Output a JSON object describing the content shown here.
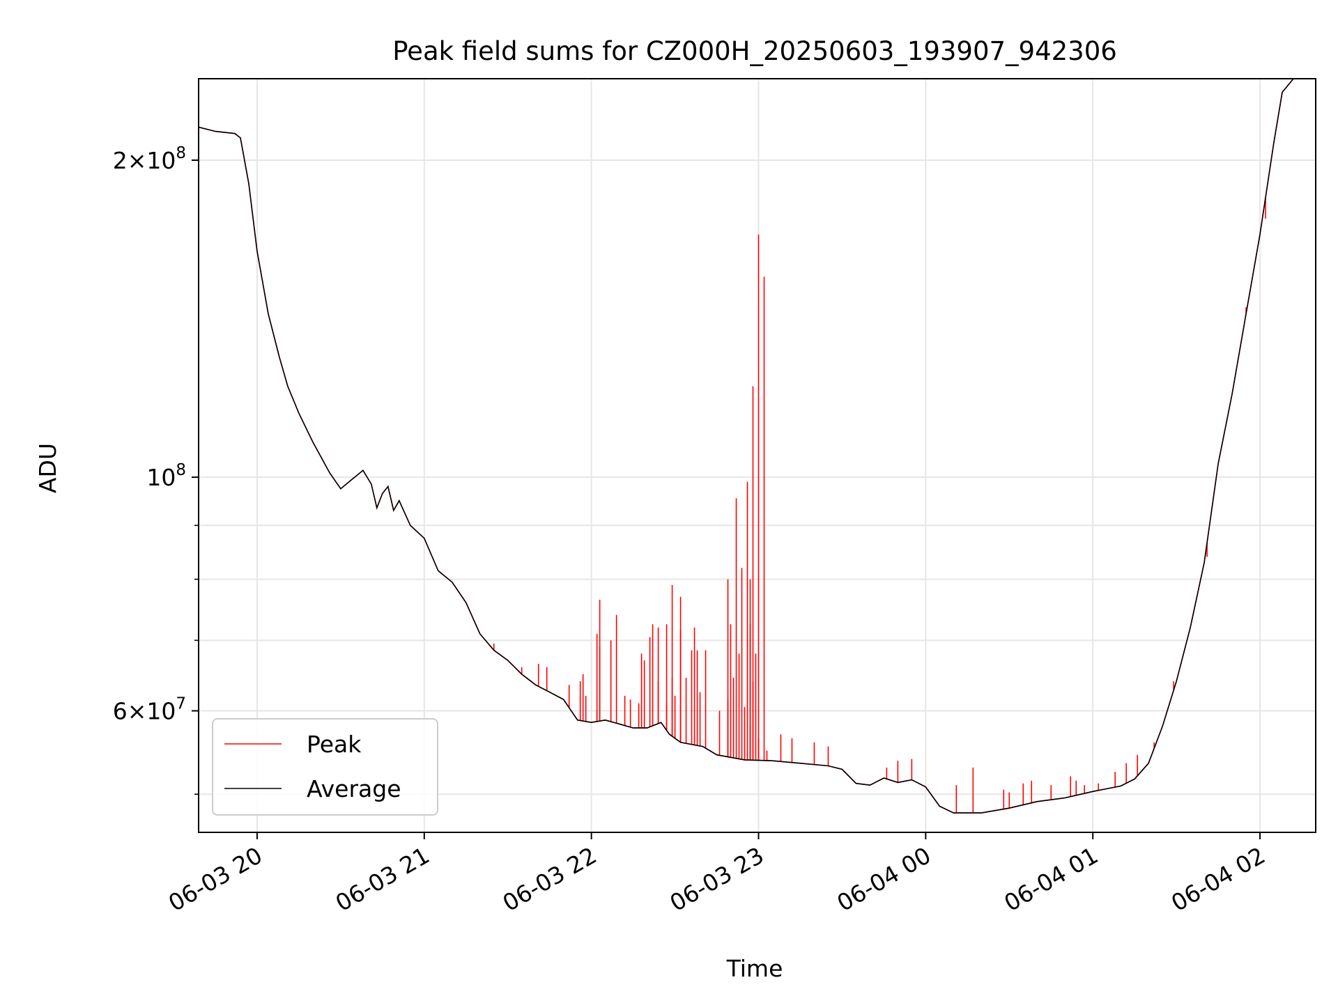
{
  "chart_data": {
    "type": "line",
    "title": "Peak field sums for CZ000H_20250603_193907_942306",
    "xlabel": "Time",
    "ylabel": "ADU",
    "x_scale": "time",
    "y_scale": "log",
    "xlim": [
      "2025-06-03 19:39",
      "2025-06-04 02:20"
    ],
    "ylim": [
      46000000,
      239000000
    ],
    "x_ticks": [
      {
        "value": "2025-06-03 20:00",
        "label": "06-03 20"
      },
      {
        "value": "2025-06-03 21:00",
        "label": "06-03 21"
      },
      {
        "value": "2025-06-03 22:00",
        "label": "06-03 22"
      },
      {
        "value": "2025-06-03 23:00",
        "label": "06-03 23"
      },
      {
        "value": "2025-06-04 00:00",
        "label": "06-04 00"
      },
      {
        "value": "2025-06-04 01:00",
        "label": "06-04 01"
      },
      {
        "value": "2025-06-04 02:00",
        "label": "06-04 02"
      }
    ],
    "y_major_ticks": [
      {
        "value": 200000000,
        "mantissa": "2",
        "times": "×",
        "base": "10",
        "exp": "8"
      },
      {
        "value": 100000000,
        "mantissa": "",
        "times": "",
        "base": "10",
        "exp": "8"
      },
      {
        "value": 60000000,
        "mantissa": "6",
        "times": "×",
        "base": "10",
        "exp": "7"
      }
    ],
    "y_minor_ticks": [
      50000000,
      70000000,
      80000000,
      90000000
    ],
    "grid": true,
    "legend_position": "lower-left",
    "colors": {
      "Peak": "#ff0000",
      "Average": "#000000"
    },
    "series": [
      {
        "name": "Average",
        "points": [
          [
            "2025-06-03 19:39",
            215000000
          ],
          [
            "2025-06-03 19:45",
            213000000
          ],
          [
            "2025-06-03 19:52",
            212000000
          ],
          [
            "2025-06-03 19:54",
            210000000
          ],
          [
            "2025-06-03 19:57",
            190000000
          ],
          [
            "2025-06-03 20:00",
            164000000
          ],
          [
            "2025-06-03 20:04",
            143000000
          ],
          [
            "2025-06-03 20:08",
            130000000
          ],
          [
            "2025-06-03 20:11",
            122000000
          ],
          [
            "2025-06-03 20:15",
            115000000
          ],
          [
            "2025-06-03 20:20",
            108000000
          ],
          [
            "2025-06-03 20:26",
            101000000
          ],
          [
            "2025-06-03 20:30",
            97500000
          ],
          [
            "2025-06-03 20:34",
            99500000
          ],
          [
            "2025-06-03 20:38",
            101500000
          ],
          [
            "2025-06-03 20:41",
            98500000
          ],
          [
            "2025-06-03 20:43",
            93500000
          ],
          [
            "2025-06-03 20:45",
            96500000
          ],
          [
            "2025-06-03 20:47",
            98000000
          ],
          [
            "2025-06-03 20:49",
            93000000
          ],
          [
            "2025-06-03 20:51",
            95000000
          ],
          [
            "2025-06-03 20:55",
            90000000
          ],
          [
            "2025-06-03 21:00",
            87500000
          ],
          [
            "2025-06-03 21:05",
            81500000
          ],
          [
            "2025-06-03 21:10",
            79500000
          ],
          [
            "2025-06-03 21:15",
            76000000
          ],
          [
            "2025-06-03 21:20",
            71000000
          ],
          [
            "2025-06-03 21:25",
            68500000
          ],
          [
            "2025-06-03 21:30",
            67000000
          ],
          [
            "2025-06-03 21:35",
            65000000
          ],
          [
            "2025-06-03 21:40",
            63500000
          ],
          [
            "2025-06-03 21:45",
            62500000
          ],
          [
            "2025-06-03 21:50",
            61500000
          ],
          [
            "2025-06-03 21:55",
            58800000
          ],
          [
            "2025-06-03 22:00",
            58500000
          ],
          [
            "2025-06-03 22:05",
            58800000
          ],
          [
            "2025-06-03 22:10",
            58300000
          ],
          [
            "2025-06-03 22:15",
            57800000
          ],
          [
            "2025-06-03 22:20",
            57800000
          ],
          [
            "2025-06-03 22:25",
            58500000
          ],
          [
            "2025-06-03 22:28",
            57000000
          ],
          [
            "2025-06-03 22:32",
            56000000
          ],
          [
            "2025-06-03 22:40",
            55500000
          ],
          [
            "2025-06-03 22:45",
            54500000
          ],
          [
            "2025-06-03 22:55",
            53900000
          ],
          [
            "2025-06-03 23:05",
            53800000
          ],
          [
            "2025-06-03 23:15",
            53500000
          ],
          [
            "2025-06-03 23:25",
            53200000
          ],
          [
            "2025-06-03 23:30",
            52800000
          ],
          [
            "2025-06-03 23:35",
            51200000
          ],
          [
            "2025-06-03 23:40",
            51000000
          ],
          [
            "2025-06-03 23:45",
            51800000
          ],
          [
            "2025-06-03 23:50",
            51300000
          ],
          [
            "2025-06-03 23:55",
            51600000
          ],
          [
            "2025-06-04 00:00",
            50800000
          ],
          [
            "2025-06-04 00:05",
            48700000
          ],
          [
            "2025-06-04 00:10",
            48000000
          ],
          [
            "2025-06-04 00:20",
            48000000
          ],
          [
            "2025-06-04 00:30",
            48500000
          ],
          [
            "2025-06-04 00:40",
            49200000
          ],
          [
            "2025-06-04 00:50",
            49600000
          ],
          [
            "2025-06-04 01:00",
            50300000
          ],
          [
            "2025-06-04 01:05",
            50600000
          ],
          [
            "2025-06-04 01:10",
            50900000
          ],
          [
            "2025-06-04 01:15",
            51700000
          ],
          [
            "2025-06-04 01:20",
            53500000
          ],
          [
            "2025-06-04 01:25",
            58000000
          ],
          [
            "2025-06-04 01:30",
            64000000
          ],
          [
            "2025-06-04 01:35",
            72000000
          ],
          [
            "2025-06-04 01:40",
            83000000
          ],
          [
            "2025-06-04 01:45",
            103000000
          ],
          [
            "2025-06-04 01:50",
            120000000
          ],
          [
            "2025-06-04 01:55",
            143000000
          ],
          [
            "2025-06-04 02:00",
            170000000
          ],
          [
            "2025-06-04 02:05",
            208000000
          ],
          [
            "2025-06-04 02:08",
            232000000
          ],
          [
            "2025-06-04 02:12",
            239000000
          ],
          [
            "2025-06-04 02:20",
            239000000
          ]
        ]
      },
      {
        "name": "Peak",
        "spikes": [
          [
            "2025-06-03 21:25",
            69500000
          ],
          [
            "2025-06-03 21:35",
            66000000
          ],
          [
            "2025-06-03 21:41",
            66500000
          ],
          [
            "2025-06-03 21:44",
            66000000
          ],
          [
            "2025-06-03 21:52",
            63500000
          ],
          [
            "2025-06-03 21:56",
            64000000
          ],
          [
            "2025-06-03 21:57",
            65000000
          ],
          [
            "2025-06-03 21:58",
            62000000
          ],
          [
            "2025-06-03 22:02",
            60000000
          ],
          [
            "2025-06-03 22:03",
            69000000
          ],
          [
            "2025-06-03 22:07",
            70000000
          ],
          [
            "2025-06-03 22:09",
            74000000
          ],
          [
            "2025-06-03 22:12",
            62000000
          ],
          [
            "2025-06-03 22:14",
            61500000
          ],
          [
            "2025-06-03 22:17",
            61000000
          ],
          [
            "2025-06-03 22:18",
            68000000
          ],
          [
            "2025-06-03 22:19",
            67000000
          ],
          [
            "2025-06-03 22:21",
            70500000
          ],
          [
            "2025-06-03 22:24",
            64000000
          ],
          [
            "2025-06-03 22:27",
            61000000
          ],
          [
            "2025-06-03 22:29",
            64500000
          ],
          [
            "2025-06-03 22:30",
            62000000
          ],
          [
            "2025-06-03 22:32",
            71500000
          ],
          [
            "2025-06-03 22:34",
            64500000
          ],
          [
            "2025-06-03 22:36",
            68500000
          ],
          [
            "2025-06-03 22:39",
            62500000
          ],
          [
            "2025-06-03 22:41",
            68500000
          ],
          [
            "2025-06-03 22:46",
            60000000
          ],
          [
            "2025-06-03 22:49",
            61500000
          ],
          [
            "2025-06-03 22:53",
            68000000
          ],
          [
            "2025-06-03 22:55",
            60500000
          ],
          [
            "2025-06-03 22:57",
            58000000
          ],
          [
            "2025-06-03 22:58",
            64000000
          ],
          [
            "2025-06-03 22:59",
            68000000
          ],
          [
            "2025-06-03 23:00",
            56500000
          ],
          [
            "2025-06-03 23:03",
            55000000
          ],
          [
            "2025-06-03 23:08",
            57000000
          ],
          [
            "2025-06-03 23:12",
            56500000
          ],
          [
            "2025-06-03 23:20",
            56000000
          ],
          [
            "2025-06-03 23:25",
            55500000
          ],
          [
            "2025-06-03 23:46",
            53000000
          ],
          [
            "2025-06-03 23:50",
            53800000
          ],
          [
            "2025-06-03 23:55",
            54000000
          ],
          [
            "2025-06-04 00:11",
            51000000
          ],
          [
            "2025-06-04 00:17",
            53000000
          ],
          [
            "2025-06-04 00:28",
            50500000
          ],
          [
            "2025-06-04 00:30",
            50200000
          ],
          [
            "2025-06-04 00:35",
            51200000
          ],
          [
            "2025-06-04 00:38",
            51500000
          ],
          [
            "2025-06-04 00:45",
            51000000
          ],
          [
            "2025-06-04 00:52",
            52000000
          ],
          [
            "2025-06-04 00:54",
            51500000
          ],
          [
            "2025-06-04 00:57",
            51000000
          ],
          [
            "2025-06-04 01:02",
            51200000
          ],
          [
            "2025-06-04 01:08",
            52500000
          ],
          [
            "2025-06-04 01:12",
            53500000
          ],
          [
            "2025-06-04 01:16",
            54500000
          ],
          [
            "2025-06-04 01:22",
            56000000
          ],
          [
            "2025-06-04 01:29",
            64000000
          ],
          [
            "2025-06-04 01:36",
            74000000
          ],
          [
            "2025-06-04 01:41",
            84000000
          ],
          [
            "2025-06-04 01:55",
            145000000
          ],
          [
            "2025-06-04 02:02",
            176000000
          ]
        ],
        "major_spikes": [
          [
            "2025-06-03 22:02",
            71000000
          ],
          [
            "2025-06-03 22:03",
            76500000
          ],
          [
            "2025-06-03 22:22",
            72500000
          ],
          [
            "2025-06-03 22:24",
            72000000
          ],
          [
            "2025-06-03 22:27",
            72500000
          ],
          [
            "2025-06-03 22:29",
            79000000
          ],
          [
            "2025-06-03 22:32",
            77000000
          ],
          [
            "2025-06-03 22:37",
            72000000
          ],
          [
            "2025-06-03 22:38",
            68500000
          ],
          [
            "2025-06-03 22:50",
            72500000
          ],
          [
            "2025-06-03 22:51",
            64500000
          ],
          [
            "2025-06-03 22:57",
            72500000
          ],
          [
            "2025-06-03 23:00",
            54000000
          ],
          [
            "2025-06-03 22:49",
            80000000
          ],
          [
            "2025-06-03 22:52",
            95500000
          ],
          [
            "2025-06-03 22:54",
            82000000
          ],
          [
            "2025-06-03 22:56",
            99000000
          ],
          [
            "2025-06-03 22:57",
            80000000
          ],
          [
            "2025-06-03 22:58",
            122000000
          ],
          [
            "2025-06-03 23:00",
            170000000
          ],
          [
            "2025-06-03 23:02",
            155000000
          ]
        ]
      }
    ]
  }
}
